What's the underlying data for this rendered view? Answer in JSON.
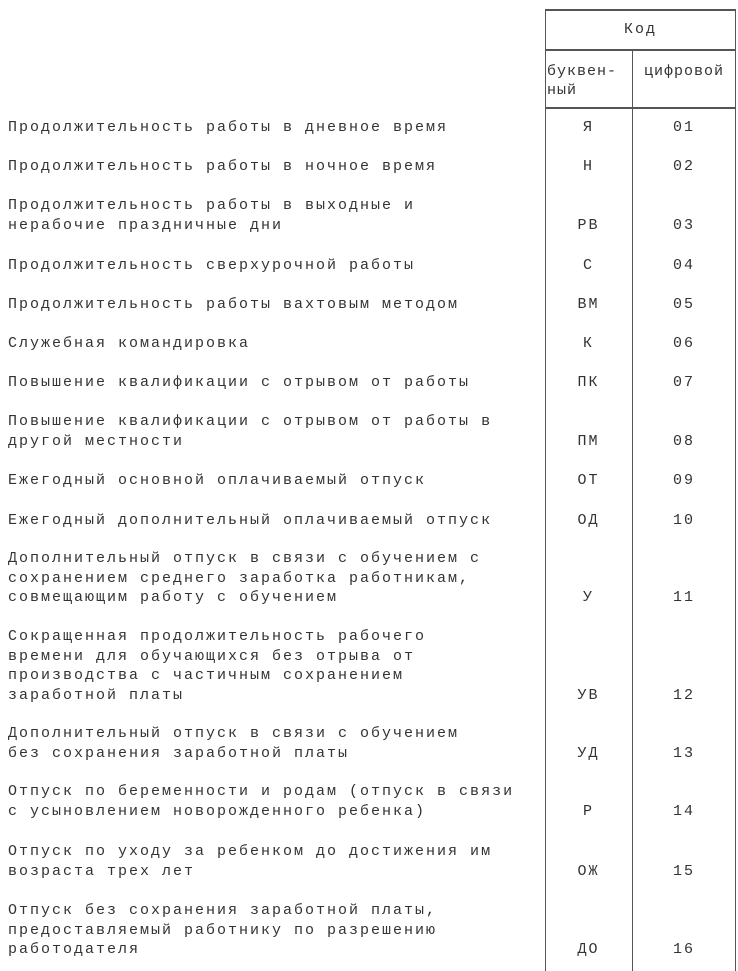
{
  "header": {
    "code": "Код",
    "letter": "буквен-\nный",
    "digit": "цифровой"
  },
  "rows": [
    {
      "desc": "Продолжительность работы в дневное время",
      "letter": "Я",
      "digit": "01"
    },
    {
      "desc": "Продолжительность работы в ночное время",
      "letter": "Н",
      "digit": "02"
    },
    {
      "desc": "Продолжительность работы в выходные и\nнерабочие праздничные дни",
      "letter": "РВ",
      "digit": "03"
    },
    {
      "desc": "Продолжительность сверхурочной работы",
      "letter": "С",
      "digit": "04"
    },
    {
      "desc": "Продолжительность работы вахтовым методом",
      "letter": "ВМ",
      "digit": "05"
    },
    {
      "desc": "Служебная командировка",
      "letter": "К",
      "digit": "06"
    },
    {
      "desc": "Повышение квалификации с отрывом от работы",
      "letter": "ПК",
      "digit": "07"
    },
    {
      "desc": "Повышение квалификации с отрывом от работы в\nдругой местности",
      "letter": "ПМ",
      "digit": "08"
    },
    {
      "desc": "Ежегодный основной оплачиваемый отпуск",
      "letter": "ОТ",
      "digit": "09"
    },
    {
      "desc": "Ежегодный дополнительный оплачиваемый отпуск",
      "letter": "ОД",
      "digit": "10"
    },
    {
      "desc": "Дополнительный отпуск в связи с обучением с\nсохранением среднего заработка работникам,\nсовмещающим работу с обучением",
      "letter": "У",
      "digit": "11"
    },
    {
      "desc": "Сокращенная продолжительность рабочего\nвремени для обучающихся без отрыва от\nпроизводства с частичным сохранением\nзаработной платы",
      "letter": "УВ",
      "digit": "12"
    },
    {
      "desc": "Дополнительный отпуск в связи с обучением\nбез сохранения заработной платы",
      "letter": "УД",
      "digit": "13"
    },
    {
      "desc": "Отпуск по беременности и родам (отпуск в связи\nс усыновлением новорожденного ребенка)",
      "letter": "Р",
      "digit": "14"
    },
    {
      "desc": "Отпуск по уходу за ребенком до достижения им\nвозраста трех лет",
      "letter": "ОЖ",
      "digit": "15"
    },
    {
      "desc": "Отпуск без сохранения заработной платы,\nпредоставляемый работнику по разрешению\nработодателя",
      "letter": "ДО",
      "digit": "16"
    }
  ]
}
